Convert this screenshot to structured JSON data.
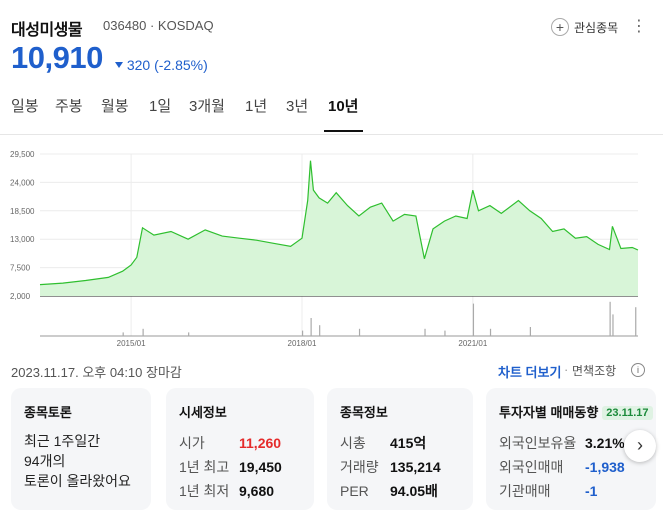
{
  "stock": {
    "name": "대성미생물",
    "code_market": "036480 · KOSDAQ",
    "price": "10,910",
    "change": "320 (-2.85%)",
    "favorite_label": "관심종목",
    "more_icon": "more-vertical-icon"
  },
  "tabs": [
    {
      "label": "일봉"
    },
    {
      "label": "주봉"
    },
    {
      "label": "월봉"
    },
    {
      "label": "1일"
    },
    {
      "label": "3개월"
    },
    {
      "label": "1년"
    },
    {
      "label": "3년"
    },
    {
      "label": "10년"
    }
  ],
  "active_tab": "10년",
  "meta": {
    "date": "2023.11.17. 오후 04:10 장마감",
    "chart_more": "차트 더보기",
    "separator": "·",
    "disclaimer": "면책조항",
    "info": "i"
  },
  "colors": {
    "accent_blue": "#1f5fcc",
    "up_red": "#e52b2b",
    "chart_line": "#2fbf2f",
    "chart_fill": "#d8f5d8"
  },
  "chart_data": {
    "type": "area",
    "y_ticks": [
      "29,500",
      "24,000",
      "18,500",
      "13,000",
      "7,500",
      "2,000"
    ],
    "y_tick_values": [
      29500,
      24000,
      18500,
      13000,
      7500,
      2000
    ],
    "x_ticks": [
      "2015/01",
      "2018/01",
      "2021/01"
    ],
    "x_tick_values": [
      2015.0,
      2018.0,
      2021.0
    ],
    "ylim": [
      2000,
      29500
    ],
    "xlim": [
      2013.4,
      2023.9
    ],
    "series": [
      {
        "x": [
          2013.4,
          2013.8,
          2014.2,
          2014.6,
          2014.85,
          2015.0,
          2015.1,
          2015.2,
          2015.4,
          2015.7,
          2016.0,
          2016.3,
          2016.6,
          2016.9,
          2017.2,
          2017.5,
          2017.8,
          2018.0,
          2018.1,
          2018.15,
          2018.2,
          2018.3,
          2018.45,
          2018.6,
          2018.8,
          2019.0,
          2019.2,
          2019.4,
          2019.6,
          2019.8,
          2020.0,
          2020.15,
          2020.3,
          2020.5,
          2020.7,
          2020.9,
          2021.0,
          2021.1,
          2021.3,
          2021.5,
          2021.8,
          2022.0,
          2022.2,
          2022.4,
          2022.6,
          2022.8,
          2023.0,
          2023.2,
          2023.4,
          2023.45,
          2023.6,
          2023.8,
          2023.9
        ],
        "y": [
          4200,
          4500,
          5000,
          5600,
          6800,
          8000,
          9500,
          15200,
          13800,
          14500,
          13000,
          14800,
          13600,
          13200,
          12800,
          12200,
          11600,
          13200,
          20500,
          28200,
          22500,
          21000,
          20000,
          22000,
          19500,
          17500,
          19200,
          20000,
          16500,
          17800,
          17500,
          9200,
          15000,
          16500,
          17500,
          17000,
          22500,
          18500,
          19500,
          18000,
          20500,
          18500,
          17000,
          14500,
          15000,
          13200,
          13500,
          12000,
          11000,
          15500,
          11200,
          11400,
          10910
        ]
      }
    ],
    "volume": {
      "x": [
        2014.85,
        2015.2,
        2016.0,
        2018.0,
        2018.15,
        2018.3,
        2019.0,
        2020.15,
        2020.5,
        2021.0,
        2021.3,
        2022.0,
        2023.4,
        2023.45,
        2023.85
      ],
      "y": [
        0.1,
        0.2,
        0.1,
        0.15,
        0.5,
        0.3,
        0.2,
        0.2,
        0.15,
        0.9,
        0.2,
        0.25,
        0.95,
        0.6,
        0.8
      ]
    }
  },
  "cards": {
    "discussion": {
      "title": "종목토론",
      "line1": "최근 1주일간",
      "line2": "94개의",
      "line3": "토론이 올라왔어요"
    },
    "quote": {
      "title": "시세정보",
      "rows": [
        {
          "k": "시가",
          "v": "11,260"
        },
        {
          "k": "1년 최고",
          "v": "19,450"
        },
        {
          "k": "1년 최저",
          "v": "9,680"
        }
      ]
    },
    "info": {
      "title": "종목정보",
      "rows": [
        {
          "k": "시총",
          "v": "415억"
        },
        {
          "k": "거래량",
          "v": "135,214"
        },
        {
          "k": "PER",
          "v": "94.05배"
        }
      ]
    },
    "investor": {
      "title": "투자자별 매매동향",
      "date": "23.11.17",
      "rows": [
        {
          "k": "외국인보유율",
          "v": "3.21%"
        },
        {
          "k": "외국인매매",
          "v": "-1,938"
        },
        {
          "k": "기관매매",
          "v": "-1"
        }
      ]
    }
  },
  "next_label": "›"
}
